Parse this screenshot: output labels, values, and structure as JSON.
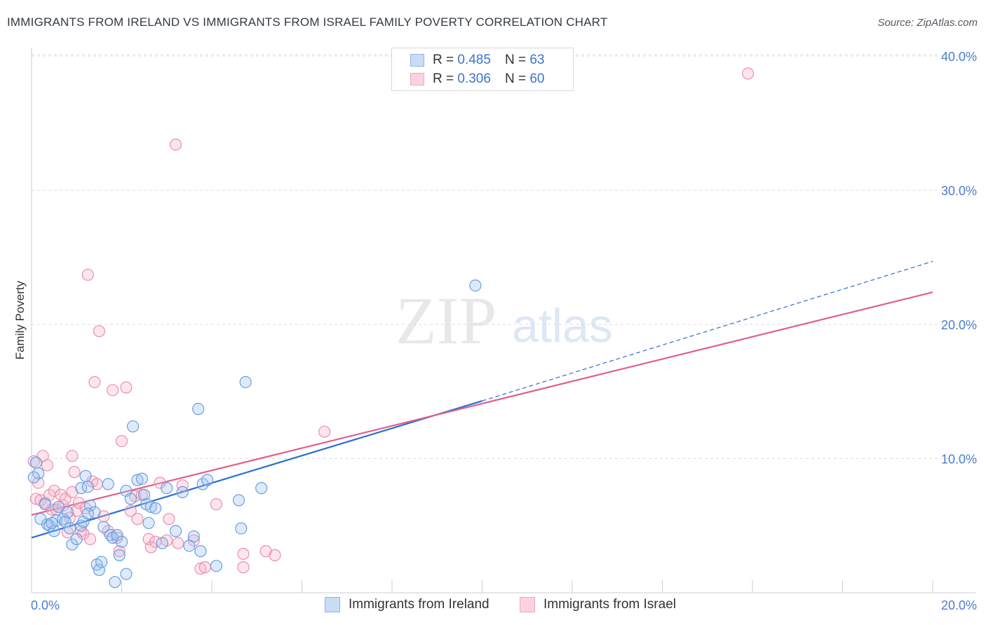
{
  "title": "IMMIGRANTS FROM IRELAND VS IMMIGRANTS FROM ISRAEL FAMILY POVERTY CORRELATION CHART",
  "source": "Source: ZipAtlas.com",
  "watermark": {
    "zip": "ZIP",
    "atlas": "atlas"
  },
  "legend": {
    "r_label": "R =",
    "n_label": "N =",
    "rows": [
      {
        "r": "0.485",
        "n": "63",
        "color": "#8db4ea",
        "fill": "#c9dcf6"
      },
      {
        "r": "0.306",
        "n": "60",
        "color": "#f0a8bf",
        "fill": "#fbd3df"
      }
    ]
  },
  "bottom_legend": [
    "Immigrants from Ireland",
    "Immigrants from Israel"
  ],
  "chart_data": {
    "type": "scatter",
    "title": "IMMIGRANTS FROM IRELAND VS IMMIGRANTS FROM ISRAEL FAMILY POVERTY CORRELATION CHART",
    "xlabel": "",
    "ylabel": "Family Poverty",
    "xlim": [
      0,
      20
    ],
    "ylim": [
      0,
      40
    ],
    "x_tick_labels": [
      "0.0%",
      "20.0%"
    ],
    "y_ticks": [
      10,
      20,
      30,
      40
    ],
    "y_tick_labels": [
      "10.0%",
      "20.0%",
      "30.0%",
      "40.0%"
    ],
    "grid": true,
    "series": [
      {
        "name": "Immigrants from Ireland",
        "color": "#6b9ee0",
        "fill": "rgba(160,196,240,0.35)",
        "trend": {
          "x1": 0,
          "y1": 4.1,
          "x2": 10,
          "y2": 14.3,
          "dash_to_x": 20,
          "dash_to_y": 24.7,
          "color": "#2a6fd0"
        },
        "points": [
          [
            0.1,
            9.7
          ],
          [
            0.15,
            8.9
          ],
          [
            0.2,
            5.5
          ],
          [
            0.3,
            6.6
          ],
          [
            0.35,
            5.1
          ],
          [
            0.4,
            5.0
          ],
          [
            0.5,
            4.6
          ],
          [
            0.55,
            5.4
          ],
          [
            0.6,
            6.4
          ],
          [
            0.7,
            5.5
          ],
          [
            0.75,
            5.3
          ],
          [
            0.8,
            6.0
          ],
          [
            0.85,
            4.8
          ],
          [
            0.9,
            3.6
          ],
          [
            1.0,
            4.0
          ],
          [
            1.1,
            5.0
          ],
          [
            1.1,
            7.8
          ],
          [
            1.15,
            5.3
          ],
          [
            1.2,
            8.7
          ],
          [
            1.25,
            7.9
          ],
          [
            1.3,
            6.5
          ],
          [
            1.4,
            6.0
          ],
          [
            1.45,
            2.1
          ],
          [
            1.5,
            1.7
          ],
          [
            1.55,
            2.3
          ],
          [
            1.6,
            4.9
          ],
          [
            1.7,
            8.1
          ],
          [
            1.75,
            4.3
          ],
          [
            1.8,
            4.1
          ],
          [
            1.85,
            0.8
          ],
          [
            1.9,
            4.3
          ],
          [
            1.95,
            2.8
          ],
          [
            2.0,
            3.8
          ],
          [
            2.1,
            7.6
          ],
          [
            2.1,
            1.4
          ],
          [
            2.2,
            7.0
          ],
          [
            2.25,
            12.4
          ],
          [
            2.35,
            8.4
          ],
          [
            2.45,
            8.5
          ],
          [
            2.5,
            7.3
          ],
          [
            2.55,
            6.6
          ],
          [
            2.6,
            5.2
          ],
          [
            2.65,
            6.4
          ],
          [
            2.75,
            6.3
          ],
          [
            2.9,
            3.7
          ],
          [
            3.0,
            7.8
          ],
          [
            3.2,
            4.6
          ],
          [
            3.35,
            7.5
          ],
          [
            3.5,
            3.5
          ],
          [
            3.6,
            4.2
          ],
          [
            3.7,
            13.7
          ],
          [
            3.75,
            3.1
          ],
          [
            3.8,
            8.1
          ],
          [
            3.9,
            8.4
          ],
          [
            4.1,
            2.0
          ],
          [
            4.6,
            6.9
          ],
          [
            4.65,
            4.8
          ],
          [
            4.75,
            15.7
          ],
          [
            5.1,
            7.8
          ],
          [
            9.85,
            22.9
          ],
          [
            0.05,
            8.6
          ],
          [
            0.45,
            5.2
          ],
          [
            1.25,
            5.9
          ]
        ]
      },
      {
        "name": "Immigrants from Israel",
        "color": "#ec8fae",
        "fill": "rgba(245,180,200,0.35)",
        "trend": {
          "x1": 0,
          "y1": 5.8,
          "x2": 20,
          "y2": 22.4,
          "color": "#e0608c"
        },
        "points": [
          [
            0.05,
            9.8
          ],
          [
            0.1,
            7.0
          ],
          [
            0.15,
            8.2
          ],
          [
            0.2,
            6.9
          ],
          [
            0.25,
            10.2
          ],
          [
            0.3,
            6.7
          ],
          [
            0.35,
            9.5
          ],
          [
            0.4,
            7.3
          ],
          [
            0.45,
            6.2
          ],
          [
            0.5,
            7.6
          ],
          [
            0.55,
            6.2
          ],
          [
            0.65,
            7.3
          ],
          [
            0.7,
            6.5
          ],
          [
            0.75,
            7.0
          ],
          [
            0.8,
            4.5
          ],
          [
            0.85,
            5.6
          ],
          [
            0.9,
            7.5
          ],
          [
            0.9,
            10.2
          ],
          [
            0.95,
            9.0
          ],
          [
            1.0,
            6.1
          ],
          [
            1.05,
            6.7
          ],
          [
            1.1,
            4.6
          ],
          [
            1.15,
            4.4
          ],
          [
            1.2,
            6.3
          ],
          [
            1.25,
            23.7
          ],
          [
            1.3,
            4.0
          ],
          [
            1.35,
            8.3
          ],
          [
            1.4,
            15.7
          ],
          [
            1.45,
            8.1
          ],
          [
            1.5,
            19.5
          ],
          [
            1.6,
            5.7
          ],
          [
            1.7,
            4.6
          ],
          [
            1.8,
            15.1
          ],
          [
            1.9,
            4.1
          ],
          [
            1.95,
            3.1
          ],
          [
            2.0,
            11.3
          ],
          [
            2.1,
            15.3
          ],
          [
            2.2,
            6.1
          ],
          [
            2.3,
            7.2
          ],
          [
            2.35,
            5.5
          ],
          [
            2.45,
            7.3
          ],
          [
            2.6,
            4.0
          ],
          [
            2.65,
            3.4
          ],
          [
            2.75,
            3.8
          ],
          [
            2.85,
            8.2
          ],
          [
            3.0,
            3.9
          ],
          [
            3.05,
            5.5
          ],
          [
            3.2,
            33.4
          ],
          [
            3.25,
            3.7
          ],
          [
            3.35,
            8.0
          ],
          [
            3.6,
            3.9
          ],
          [
            3.75,
            1.8
          ],
          [
            3.85,
            1.9
          ],
          [
            4.1,
            6.6
          ],
          [
            4.7,
            2.9
          ],
          [
            4.7,
            1.9
          ],
          [
            5.2,
            3.1
          ],
          [
            5.4,
            2.8
          ],
          [
            6.5,
            12.0
          ],
          [
            15.9,
            38.7
          ]
        ]
      }
    ]
  }
}
